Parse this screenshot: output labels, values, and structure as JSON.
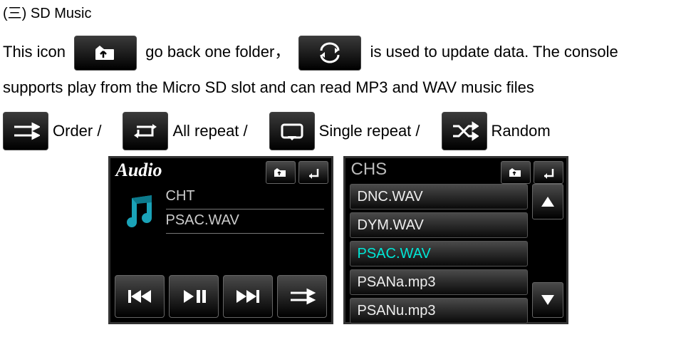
{
  "section_title": "(三) SD Music",
  "para": {
    "t1": "This icon",
    "t2": "go back one folder，",
    "t3": "is used to update data. The console",
    "t4": "supports play from the Micro SD slot and can read MP3 and WAV music files"
  },
  "modes": {
    "order": "Order /",
    "all_repeat": "All repeat /",
    "single_repeat": "Single repeat /",
    "random": "Random"
  },
  "shot_left": {
    "title": "Audio",
    "entries": [
      "CHT",
      "PSAC.WAV"
    ]
  },
  "shot_right": {
    "title": "CHS",
    "files": [
      "DNC.WAV",
      "DYM.WAV",
      "PSAC.WAV",
      "PSANa.mp3",
      "PSANu.mp3"
    ],
    "selected_index": 2
  }
}
